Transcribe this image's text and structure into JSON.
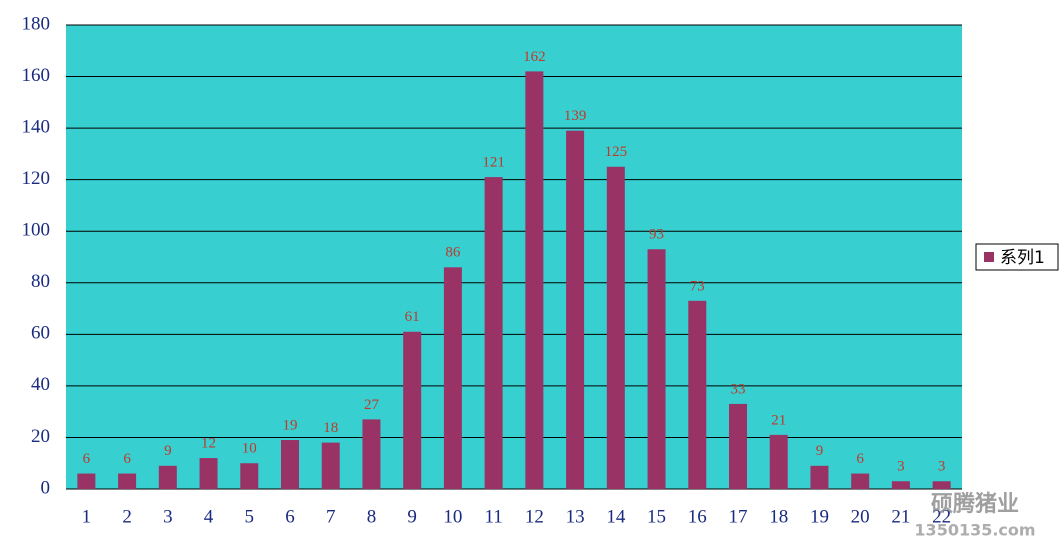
{
  "chart_data": {
    "type": "bar",
    "categories": [
      "1",
      "2",
      "3",
      "4",
      "5",
      "6",
      "7",
      "8",
      "9",
      "10",
      "11",
      "12",
      "13",
      "14",
      "15",
      "16",
      "17",
      "18",
      "19",
      "20",
      "21",
      "22"
    ],
    "series": [
      {
        "name": "系列1",
        "color": "#993366",
        "values": [
          6,
          6,
          9,
          12,
          10,
          19,
          18,
          27,
          61,
          86,
          121,
          162,
          139,
          125,
          93,
          73,
          33,
          21,
          9,
          6,
          3,
          3
        ]
      }
    ],
    "ylim": [
      0,
      180
    ],
    "yticks": [
      0,
      20,
      40,
      60,
      80,
      100,
      120,
      140,
      160,
      180
    ],
    "grid": true,
    "legend": "right",
    "plot_background": "#37cfcf",
    "label_color": "#c0392b"
  },
  "watermark": {
    "name": "硕腾猪业",
    "site": "1350135.com"
  }
}
